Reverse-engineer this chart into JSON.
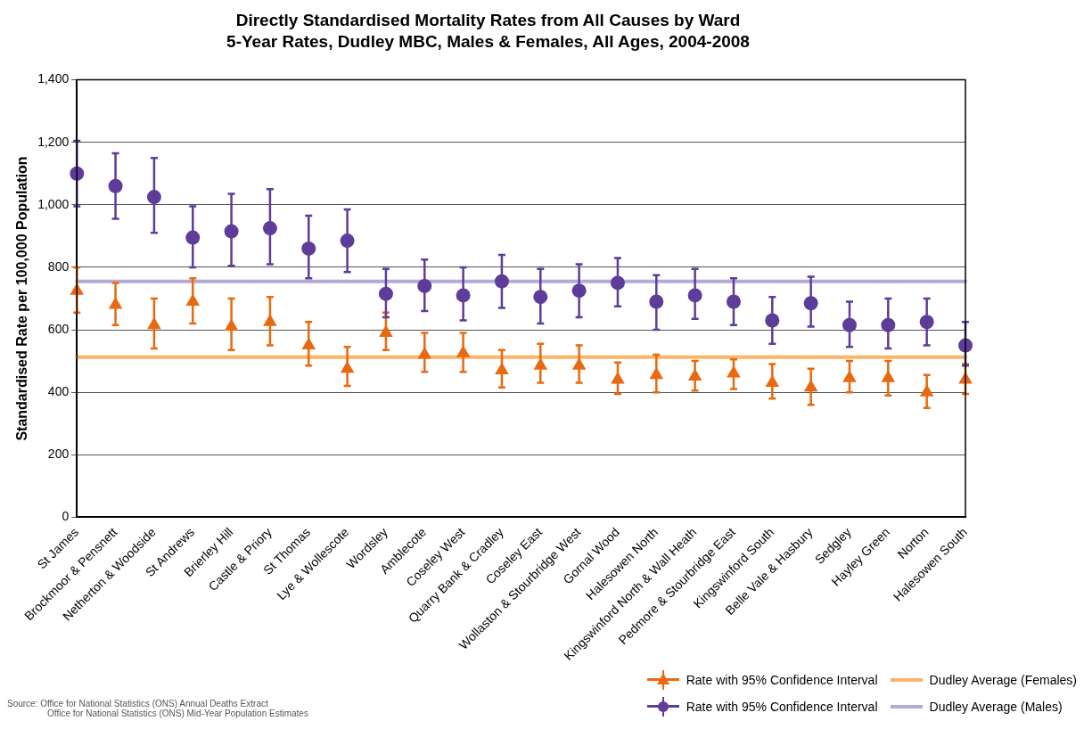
{
  "chart_data": {
    "type": "scatter",
    "title": "Directly Standardised Mortality Rates from All Causes by Ward",
    "subtitle": "5-Year Rates, Dudley MBC, Males & Females, All Ages, 2004-2008",
    "ylabel": "Standardised Rate per 100,000 Population",
    "categories": [
      "St James",
      "Brockmoor & Pensnett",
      "Netherton & Woodside",
      "St Andrews",
      "Brierley Hill",
      "Castle & Priory",
      "St Thomas",
      "Lye & Wollescote",
      "Wordsley",
      "Amblecote",
      "Coseley West",
      "Quarry Bank & Cradley",
      "Coseley East",
      "Wollaston & Stourbridge West",
      "Gornal Wood",
      "Halesowen North",
      "Kingswinford North & Wall Heath",
      "Pedmore & Stourbridge East",
      "Kingswinford South",
      "Belle Vale & Hasbury",
      "Sedgley",
      "Hayley Green",
      "Norton",
      "Halesowen South"
    ],
    "series": [
      {
        "name": "Rate with 95% Confidence Interval",
        "color": "#e8690f",
        "marker": "triangle",
        "values": [
          725,
          680,
          615,
          690,
          610,
          625,
          550,
          475,
          590,
          520,
          525,
          470,
          485,
          485,
          440,
          455,
          450,
          460,
          430,
          415,
          445,
          445,
          400,
          440
        ],
        "errors": [
          [
            655,
            800
          ],
          [
            615,
            750
          ],
          [
            540,
            700
          ],
          [
            620,
            765
          ],
          [
            535,
            700
          ],
          [
            550,
            705
          ],
          [
            485,
            625
          ],
          [
            420,
            545
          ],
          [
            535,
            655
          ],
          [
            465,
            590
          ],
          [
            465,
            590
          ],
          [
            415,
            535
          ],
          [
            430,
            555
          ],
          [
            430,
            550
          ],
          [
            395,
            495
          ],
          [
            400,
            520
          ],
          [
            405,
            500
          ],
          [
            410,
            505
          ],
          [
            380,
            490
          ],
          [
            360,
            475
          ],
          [
            400,
            500
          ],
          [
            390,
            500
          ],
          [
            350,
            455
          ],
          [
            395,
            490
          ]
        ]
      },
      {
        "name": "Rate with 95% Confidence Interval",
        "color": "#5e3c99",
        "marker": "circle",
        "values": [
          1100,
          1060,
          1025,
          895,
          915,
          925,
          860,
          885,
          715,
          740,
          710,
          755,
          705,
          725,
          750,
          690,
          710,
          690,
          630,
          685,
          615,
          615,
          625,
          550
        ],
        "errors": [
          [
            995,
            1205
          ],
          [
            955,
            1165
          ],
          [
            910,
            1150
          ],
          [
            800,
            995
          ],
          [
            805,
            1035
          ],
          [
            810,
            1050
          ],
          [
            765,
            965
          ],
          [
            785,
            985
          ],
          [
            640,
            795
          ],
          [
            660,
            825
          ],
          [
            630,
            800
          ],
          [
            670,
            840
          ],
          [
            620,
            795
          ],
          [
            640,
            810
          ],
          [
            675,
            830
          ],
          [
            600,
            775
          ],
          [
            635,
            795
          ],
          [
            615,
            765
          ],
          [
            555,
            705
          ],
          [
            610,
            770
          ],
          [
            545,
            690
          ],
          [
            540,
            700
          ],
          [
            550,
            700
          ],
          [
            485,
            625
          ]
        ]
      }
    ],
    "ref_lines": [
      {
        "axis": "y",
        "value": 512,
        "label": "Dudley Average (Females)",
        "color": "#fdb466"
      },
      {
        "axis": "y",
        "value": 755,
        "label": "Dudley Average (Males)",
        "color": "#b4aad6"
      }
    ],
    "ylim": [
      0,
      1400
    ],
    "yticks": [
      0,
      200,
      400,
      600,
      800,
      {
        "value": 1000,
        "label": "1,000"
      },
      {
        "value": 1200,
        "label": "1,200"
      },
      {
        "value": 1400,
        "label": "1,400"
      }
    ],
    "grid": "y",
    "legend": "bottom right",
    "annotations": [
      "Source:  Office for National Statistics (ONS) Annual Deaths Extract",
      "Office for National Statistics (ONS) Mid-Year Population Estimates"
    ]
  }
}
